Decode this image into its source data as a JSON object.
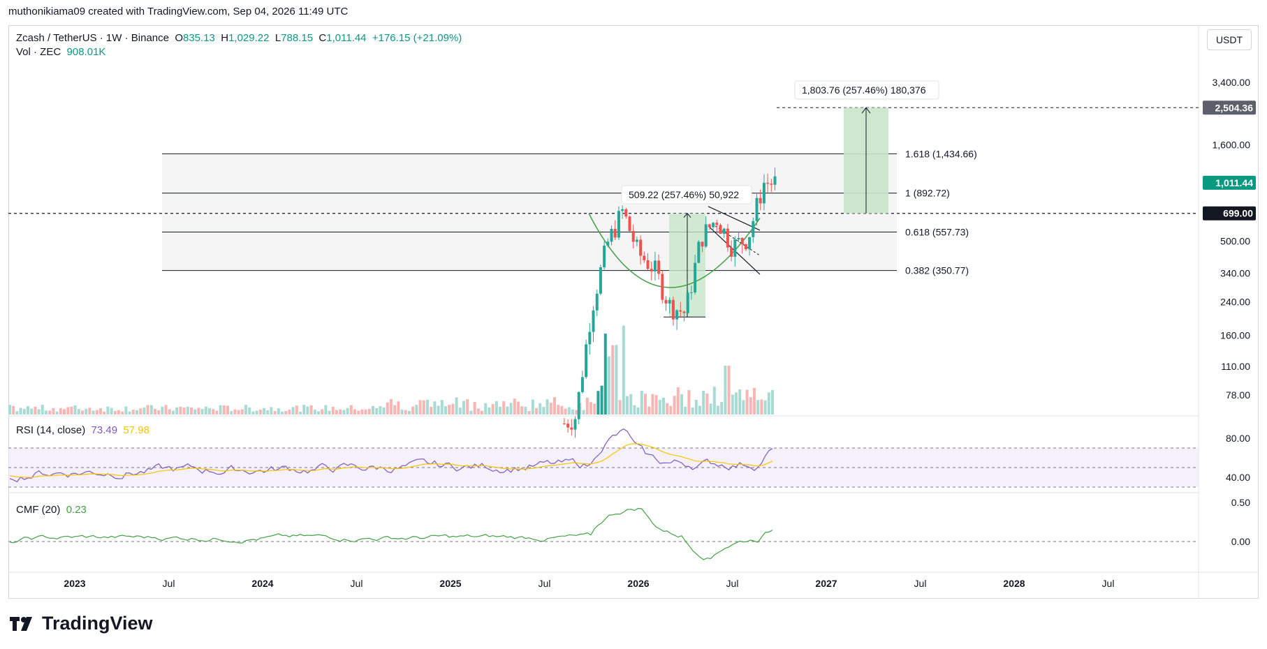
{
  "header": {
    "caption": "muthonikiama09 created with TradingView.com, Sep 04, 2026 11:49 UTC"
  },
  "legend": {
    "symbol": "Zcash / TetherUS · 1W · Binance",
    "o_label": "O",
    "o_value": "835.13",
    "h_label": "H",
    "h_value": "1,029.22",
    "l_label": "L",
    "l_value": "788.15",
    "c_label": "C",
    "c_value": "1,011.44",
    "change": "+176.15 (+21.09%)",
    "vol_label": "Vol · ZEC",
    "vol_value": "908.01K"
  },
  "currency_button": "USDT",
  "rsi": {
    "label": "RSI (14, close)",
    "value": "73.49",
    "ma_value": "57.98"
  },
  "cmf": {
    "label": "CMF (20)",
    "value": "0.23"
  },
  "brand": {
    "name": "TradingView"
  },
  "colors": {
    "up": "#26a69a",
    "up_strong": "#089981",
    "down": "#ef5350",
    "rsi_line": "#7e57c2",
    "rsi_ma": "#f7c400",
    "cmf_line": "#43a047",
    "measure_fill": "#c8e6c9"
  },
  "chart_data": [
    {
      "type": "line",
      "name": "price",
      "scale": "log",
      "x_ticks": [
        "2023",
        "Jul",
        "2024",
        "Jul",
        "2025",
        "Jul",
        "2026",
        "Jul",
        "2027",
        "Jul",
        "2028",
        "Jul"
      ],
      "y_ticks": [
        "3,400.00",
        "1,600.00",
        "500.00",
        "340.00",
        "240.00",
        "160.00",
        "110.00",
        "78.00"
      ],
      "y_tick_values": [
        3400,
        1600,
        500,
        340,
        240,
        160,
        110,
        78
      ],
      "price_labels": {
        "target": "2,504.36",
        "last": "1,011.44",
        "level": "699.00"
      },
      "fib_levels": [
        {
          "label": "1.618 (1,434.66)",
          "value": 1434.66
        },
        {
          "label": "1 (892.72)",
          "value": 892.72
        },
        {
          "label": "0.618 (557.73)",
          "value": 557.73
        },
        {
          "label": "0.382 (350.77)",
          "value": 350.77
        }
      ],
      "annotations": [
        "1,803.76 (257.46%) 180,376",
        "509.22 (257.46%) 50,922"
      ],
      "key_prices": {
        "breakout_level": 699.0,
        "target": 2504.36,
        "last_close": 1011.44,
        "pattern_low": 200.0
      },
      "x": [
        "2025-07",
        "2025-09",
        "2025-10",
        "2025-11",
        "2025-12",
        "2026-01",
        "2026-02",
        "2026-03",
        "2026-04",
        "2026-05",
        "2026-06",
        "2026-07",
        "2026-08",
        "2026-09"
      ],
      "y": [
        48,
        60,
        220,
        480,
        720,
        430,
        360,
        230,
        210,
        520,
        660,
        470,
        520,
        1011.44
      ]
    },
    {
      "type": "line",
      "name": "RSI (14, close)",
      "y_ticks": [
        "80.00",
        "40.00"
      ],
      "bands": [
        70,
        50,
        30
      ],
      "last": 73.49,
      "ma_last": 57.98
    },
    {
      "type": "line",
      "name": "CMF (20)",
      "y_ticks": [
        "0.50",
        "0.00"
      ],
      "last": 0.23
    }
  ]
}
